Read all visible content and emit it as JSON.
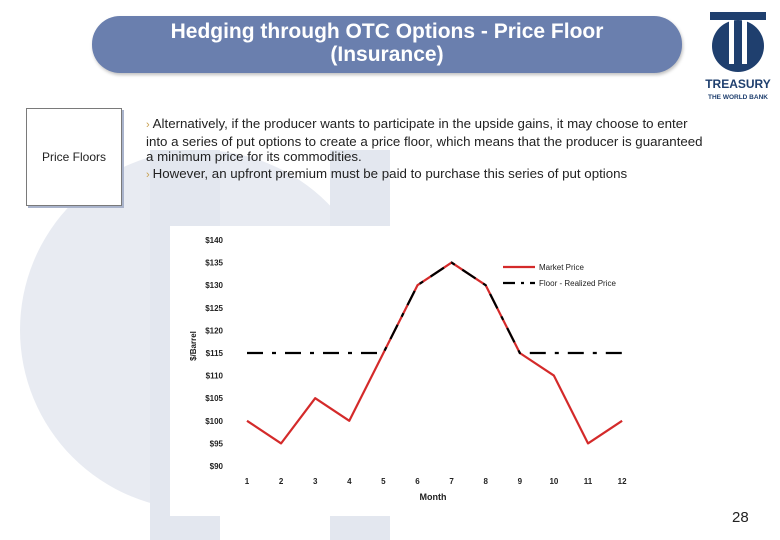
{
  "slide": {
    "title_line1": "Hedging through OTC Options -  Price Floor",
    "title_line2": "(Insurance)",
    "side_label": "Price Floors",
    "bullets": [
      "Alternatively, if the producer wants to participate in the upside gains, it may choose to enter into a series of put options to create a price floor, which means that the producer is guaranteed a minimum price for its commodities.",
      "However, an upfront premium must be paid to purchase this series of put options"
    ],
    "page_number": "28",
    "logo": {
      "name": "TREASURY",
      "sub": "THE WORLD BANK"
    }
  },
  "colors": {
    "title_bar": "#6a7fae",
    "logo": "#1f3f6e",
    "market_line": "#d42a2a",
    "floor_line": "#000000"
  },
  "chart_data": {
    "type": "line",
    "x": [
      1,
      2,
      3,
      4,
      5,
      6,
      7,
      8,
      9,
      10,
      11,
      12
    ],
    "series": [
      {
        "name": "Market Price",
        "values": [
          100,
          95,
          105,
          100,
          115,
          130,
          135,
          130,
          115,
          110,
          95,
          100
        ],
        "style": "solid"
      },
      {
        "name": "Floor - Realized Price",
        "values": [
          115,
          115,
          115,
          115,
          115,
          130,
          135,
          130,
          115,
          115,
          115,
          115
        ],
        "style": "dashed"
      }
    ],
    "ylabel": "$/Barrel",
    "xlabel": "Month",
    "ylim": [
      90,
      140
    ],
    "yticks": [
      140,
      135,
      130,
      125,
      120,
      115,
      110,
      105,
      100,
      95,
      90
    ],
    "ytick_labels": [
      "$140",
      "$135",
      "$130",
      "$125",
      "$120",
      "$115",
      "$110",
      "$105",
      "$100",
      "$95",
      "$90"
    ],
    "xtick_labels": [
      "1",
      "2",
      "3",
      "4",
      "5",
      "6",
      "7",
      "8",
      "9",
      "10",
      "11",
      "12"
    ],
    "legend_position": "top-right",
    "grid": false
  }
}
